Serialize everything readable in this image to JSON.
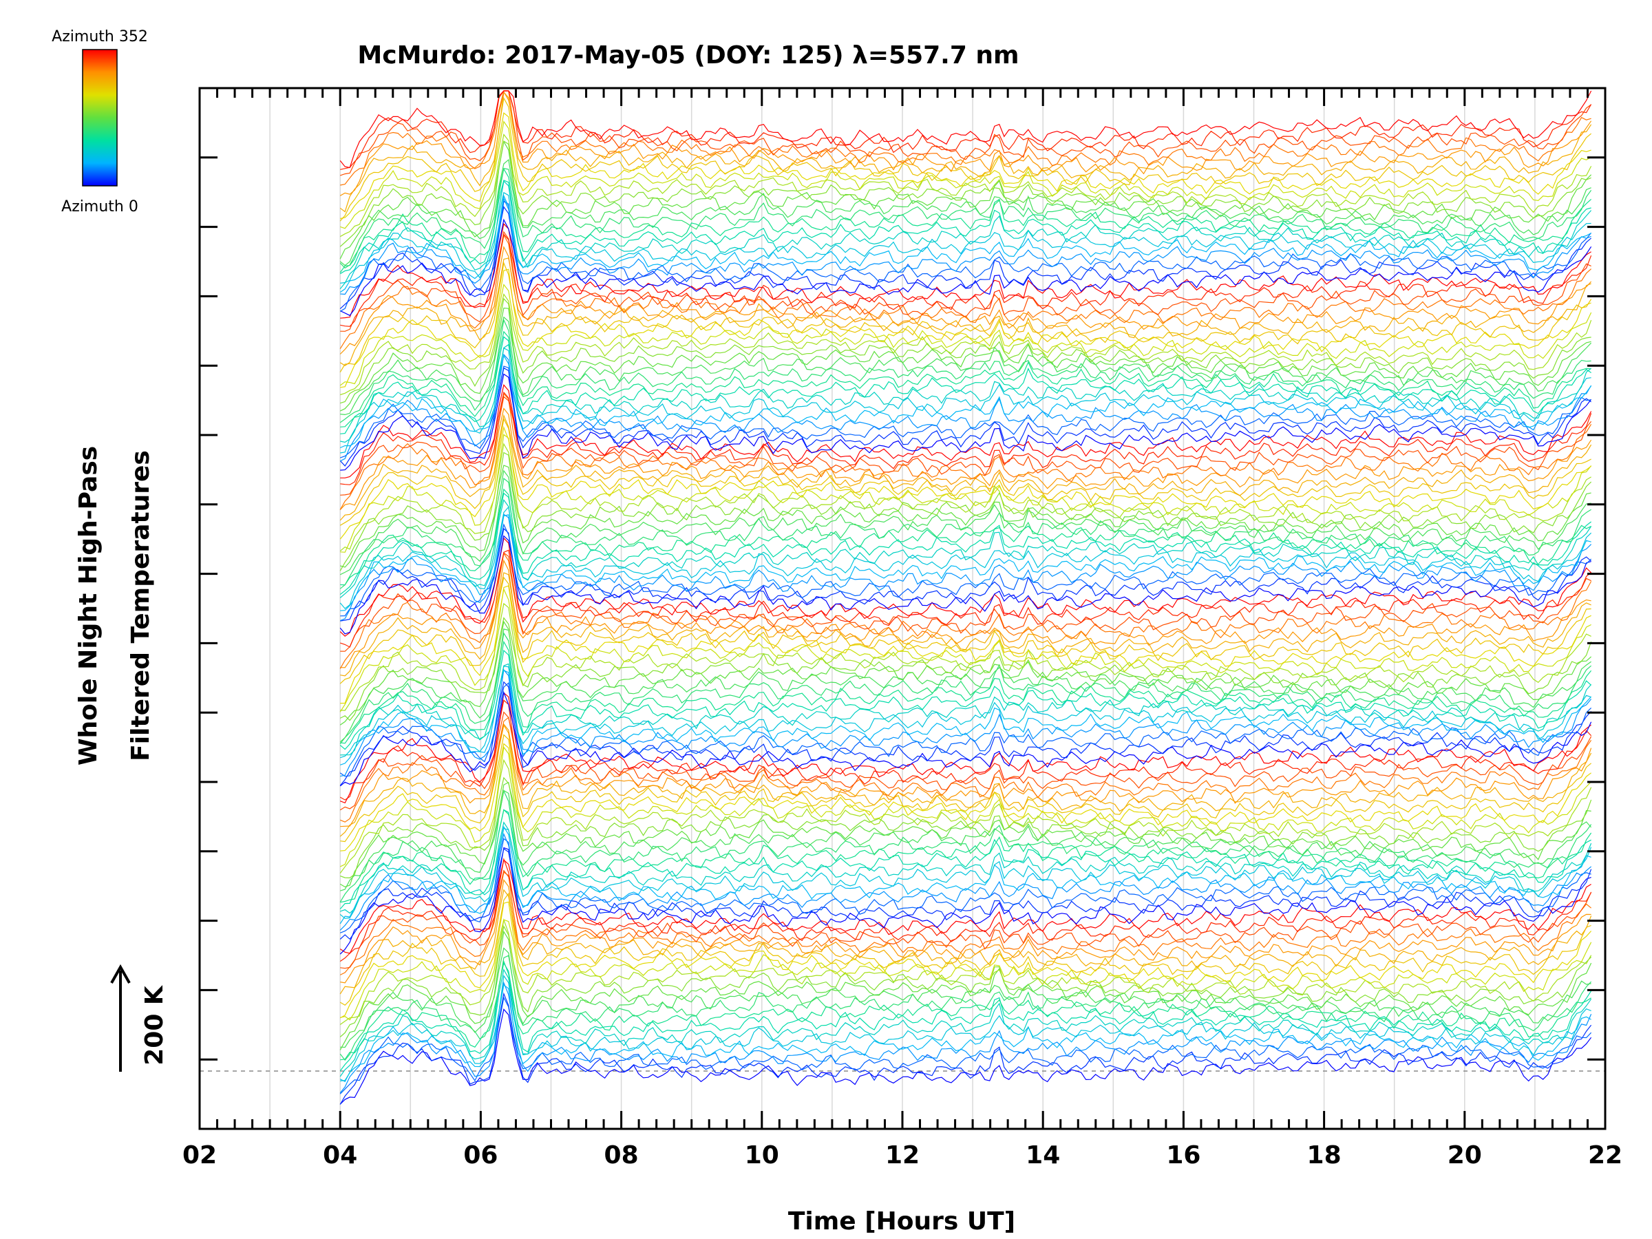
{
  "chart_data": {
    "type": "line",
    "title": "McMurdo: 2017-May-05 (DOY: 125) λ=557.7 nm",
    "xlabel": "Time [Hours UT]",
    "ylabel_line1": "Whole Night High-Pass",
    "ylabel_line2": "Filtered Temperatures",
    "scale_bar_label": "200 K",
    "xlim": [
      2,
      22
    ],
    "x_ticks": [
      "02",
      "04",
      "06",
      "08",
      "10",
      "12",
      "14",
      "16",
      "18",
      "20",
      "22"
    ],
    "grid": "vertical at each hour",
    "data_start_hour": 4.0,
    "data_end_hour": 21.8,
    "baseline_dashed": true,
    "colorbar": {
      "top_label": "Azimuth 352",
      "bottom_label": "Azimuth 0",
      "colors": [
        "#0000ff",
        "#00b4ff",
        "#00e0a0",
        "#60e040",
        "#e0e000",
        "#ff9000",
        "#ff0000"
      ],
      "placement": "top-left"
    },
    "groups": 6,
    "azimuths_per_group": 23,
    "features": [
      {
        "hour": 6.35,
        "type": "peak"
      },
      {
        "hour": 13.35,
        "type": "peak"
      },
      {
        "hour": 13.8,
        "type": "peak"
      },
      {
        "hour": 10.0,
        "type": "peak"
      },
      {
        "hour": 21.0,
        "type": "dip"
      }
    ]
  }
}
